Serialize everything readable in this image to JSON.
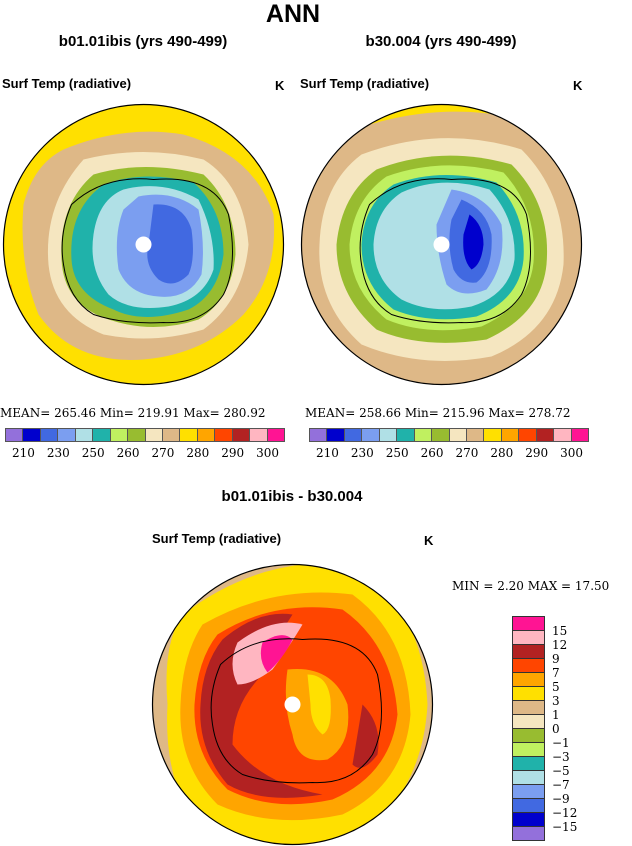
{
  "title": "ANN",
  "palette": [
    "#9370DB",
    "#0000CD",
    "#4169E1",
    "#7B9EF0",
    "#B0E0E6",
    "#20B2AA",
    "#C0F060",
    "#98BC30",
    "#F5E6C0",
    "#DEB887",
    "#FFE000",
    "#FFA500",
    "#FF4500",
    "#B22222",
    "#FFB6C1",
    "#FF1493"
  ],
  "panels": [
    {
      "title": "b01.01ibis (yrs 490-499)",
      "variable": "Surf Temp (radiative)",
      "units": "K",
      "stats": "MEAN=  265.46   Min=  219.91   Max=  280.92"
    },
    {
      "title": "b30.004 (yrs 490-499)",
      "variable": "Surf Temp (radiative)",
      "units": "K",
      "stats": "MEAN=  258.66   Min=  215.96   Max=  278.72"
    }
  ],
  "colorbar_labels": [
    "210",
    "230",
    "250",
    "260",
    "270",
    "280",
    "290",
    "300"
  ],
  "diff": {
    "title": "b01.01ibis - b30.004",
    "variable": "Surf Temp (radiative)",
    "units": "K",
    "stats": "MIN =    2.20  MAX =   17.50",
    "colorbar_labels": [
      "15",
      "12",
      "9",
      "7",
      "5",
      "3",
      "1",
      "0",
      "−1",
      "−3",
      "−5",
      "−7",
      "−9",
      "−12",
      "−15"
    ]
  }
}
